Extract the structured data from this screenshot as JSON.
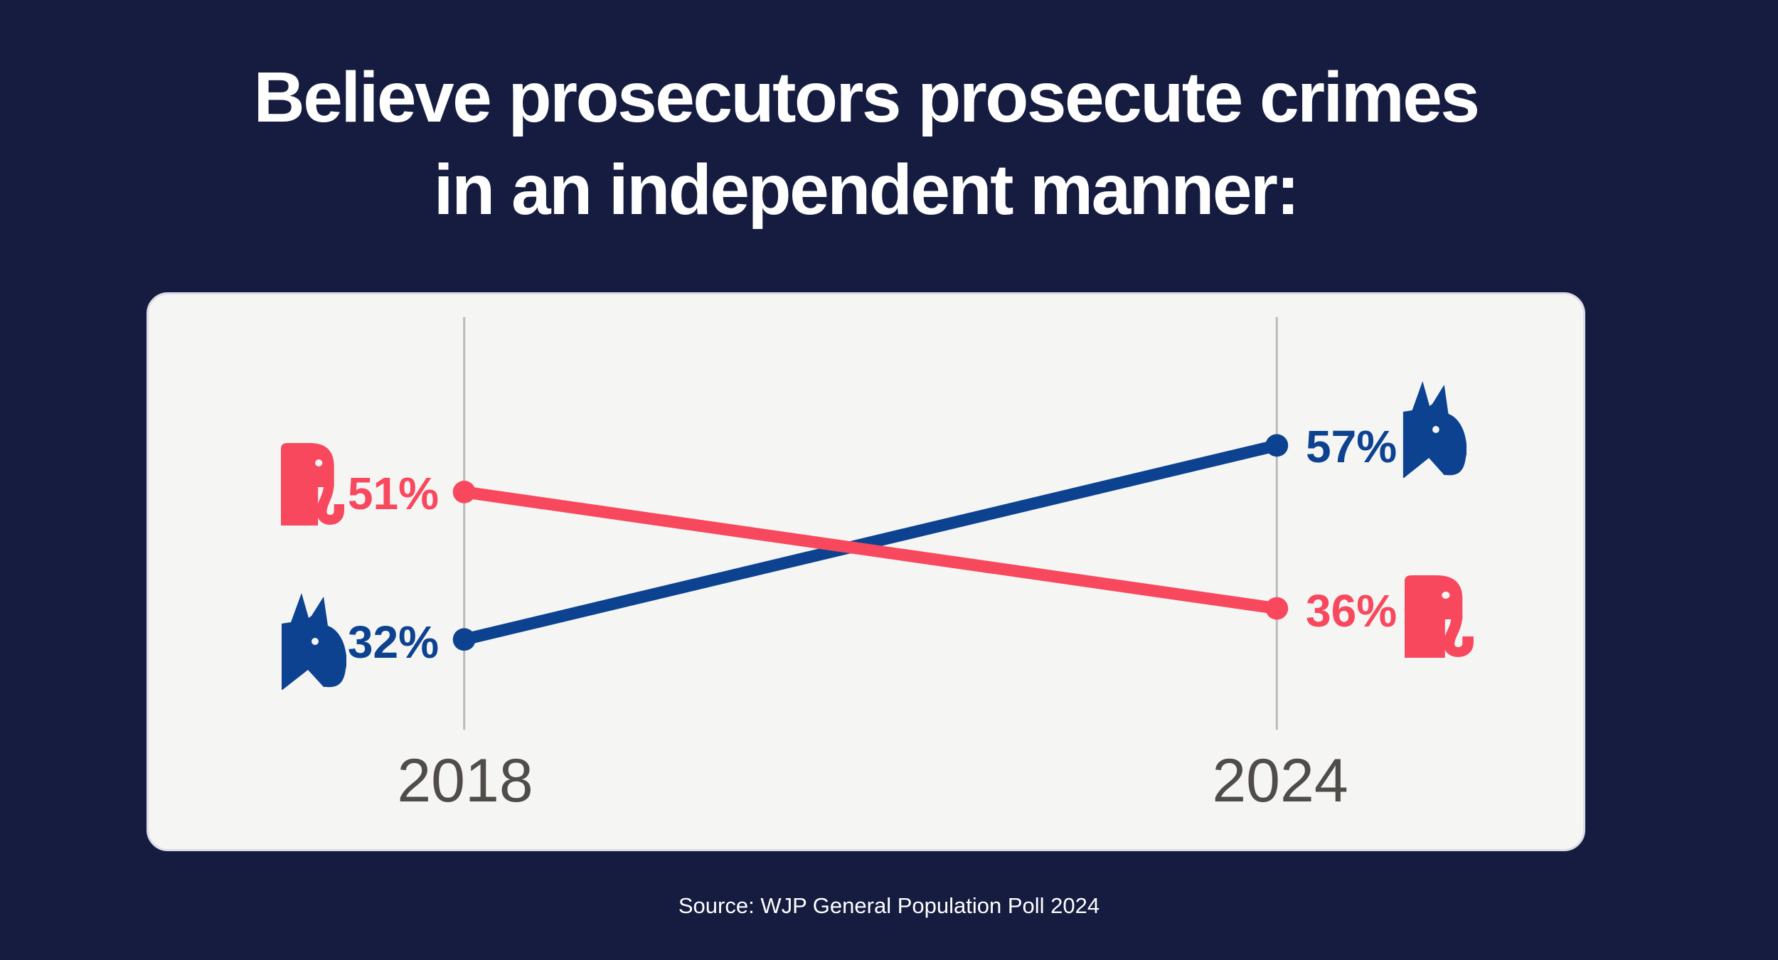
{
  "colors": {
    "background": "#151c3f",
    "card": "#f5f5f4",
    "card_border": "#dcdbe8",
    "republican_red": "#f8485d",
    "democrat_blue": "#0c4290",
    "axis_line": "#bdbaba",
    "year_label": "#4f4c49",
    "title_text": "#ffffff",
    "icon_eye": "#f5f5f4"
  },
  "title": {
    "line1": "Believe prosecutors prosecute crimes",
    "line2": "in an independent manner:"
  },
  "source": "Source: WJP General Population Poll 2024",
  "icons": {
    "left_top": "republican-elephant",
    "left_bottom": "democrat-donkey",
    "right_top": "democrat-donkey",
    "right_bottom": "republican-elephant"
  },
  "chart_data": {
    "type": "line",
    "subtype": "slope-chart",
    "categories": [
      "2018",
      "2024"
    ],
    "series": [
      {
        "name": "Republicans",
        "icon": "elephant-icon",
        "color": "#f8485d",
        "values": [
          51,
          36
        ],
        "labels": [
          "51%",
          "36%"
        ]
      },
      {
        "name": "Democrats",
        "icon": "donkey-icon",
        "color": "#0c4290",
        "values": [
          32,
          57
        ],
        "labels": [
          "32%",
          "57%"
        ]
      }
    ],
    "xlabel": "",
    "ylabel": "",
    "ylim": [
      20,
      70
    ],
    "grid": false,
    "legend_position": "none",
    "value_labels_shown": true
  }
}
